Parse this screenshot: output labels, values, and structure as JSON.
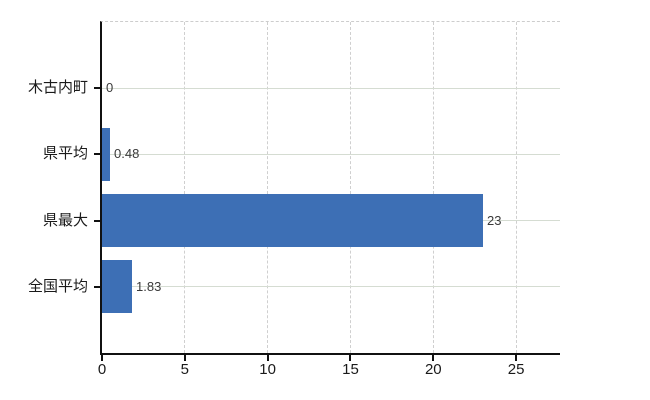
{
  "chart_data": {
    "type": "bar",
    "orientation": "horizontal",
    "categories": [
      "木古内町",
      "県平均",
      "県最大",
      "全国平均"
    ],
    "values": [
      0,
      0.48,
      23,
      1.83
    ],
    "value_labels": [
      "0",
      "0.48",
      "23",
      "1.83"
    ],
    "x_ticks": [
      0,
      5,
      10,
      15,
      20,
      25
    ],
    "xlim": [
      0,
      27.65
    ],
    "grid": true,
    "legend": false,
    "colors": {
      "bar": "#3d6fb5",
      "axis": "#111111",
      "vertical_grid": "#cfcfcf",
      "horizontal_grid": "#d5dcd2",
      "top_border": "#cdcdcd",
      "category_label": "#1a1a1a",
      "tick_label": "#1a1a1a",
      "value_label": "#3a3a3a",
      "background": "#ffffff"
    }
  }
}
